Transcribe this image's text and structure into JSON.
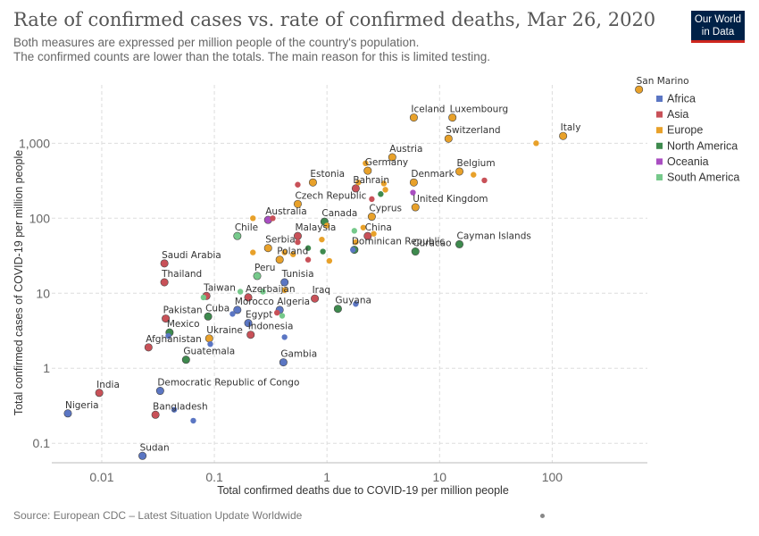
{
  "header": {
    "title": "Rate of confirmed cases vs. rate of confirmed deaths, Mar 26, 2020",
    "subtitle_line1": "Both measures are expressed per million people of the country's population.",
    "subtitle_line2": "The confirmed counts are lower than the totals. The main reason for this is limited testing.",
    "logo_line1": "Our World",
    "logo_line2": "in Data"
  },
  "footer": {
    "source": "Source: European CDC – Latest Situation Update Worldwide"
  },
  "colors": {
    "Africa": "#5b76c3",
    "Asia": "#c85158",
    "Europe": "#e8a12a",
    "North America": "#3e8a4e",
    "Oceania": "#a94ec1",
    "South America": "#76c98b"
  },
  "chart_data": {
    "type": "scatter",
    "xlabel": "Total confirmed deaths due to COVID-19 per million people",
    "ylabel": "Total confirmed cases of COVID-19 per million people",
    "xscale": "log",
    "yscale": "log",
    "xlim": [
      0.0036,
      700
    ],
    "ylim": [
      0.055,
      6000
    ],
    "x_ticks": [
      {
        "value": 0.01,
        "label": "0.01"
      },
      {
        "value": 0.1,
        "label": "0.1"
      },
      {
        "value": 1,
        "label": "1"
      },
      {
        "value": 10,
        "label": "10"
      },
      {
        "value": 100,
        "label": "100"
      }
    ],
    "y_ticks": [
      {
        "value": 0.1,
        "label": "0.1"
      },
      {
        "value": 1,
        "label": "1"
      },
      {
        "value": 10,
        "label": "10"
      },
      {
        "value": 100,
        "label": "100"
      },
      {
        "value": 1000,
        "label": "1,000"
      }
    ],
    "grid": true,
    "legend_position": "right",
    "legend": [
      "Africa",
      "Asia",
      "Europe",
      "North America",
      "Oceania",
      "South America"
    ],
    "points": [
      {
        "label": "San Marino",
        "x": 590,
        "y": 5200,
        "region": "Europe"
      },
      {
        "label": "Italy",
        "x": 125,
        "y": 1250,
        "region": "Europe"
      },
      {
        "label": "",
        "x": 72,
        "y": 1000,
        "region": "Europe"
      },
      {
        "label": "Luxembourg",
        "x": 13,
        "y": 2200,
        "region": "Europe"
      },
      {
        "label": "Iceland",
        "x": 5.9,
        "y": 2200,
        "region": "Europe"
      },
      {
        "label": "Switzerland",
        "x": 12,
        "y": 1150,
        "region": "Europe"
      },
      {
        "label": "Austria",
        "x": 3.8,
        "y": 650,
        "region": "Europe"
      },
      {
        "label": "Germany",
        "x": 2.3,
        "y": 430,
        "region": "Europe"
      },
      {
        "label": "",
        "x": 2.2,
        "y": 540,
        "region": "Europe"
      },
      {
        "label": "Belgium",
        "x": 15,
        "y": 420,
        "region": "Europe"
      },
      {
        "label": "",
        "x": 20,
        "y": 380,
        "region": "Europe"
      },
      {
        "label": "",
        "x": 25,
        "y": 320,
        "region": "Asia"
      },
      {
        "label": "Denmark",
        "x": 5.9,
        "y": 300,
        "region": "Europe"
      },
      {
        "label": "",
        "x": 3.2,
        "y": 290,
        "region": "Europe"
      },
      {
        "label": "",
        "x": 3.3,
        "y": 240,
        "region": "Europe"
      },
      {
        "label": "Estonia",
        "x": 0.75,
        "y": 300,
        "region": "Europe"
      },
      {
        "label": "",
        "x": 0.55,
        "y": 280,
        "region": "Asia"
      },
      {
        "label": "Bahrain",
        "x": 1.8,
        "y": 250,
        "region": "Asia"
      },
      {
        "label": "",
        "x": 1.9,
        "y": 300,
        "region": "Europe"
      },
      {
        "label": "",
        "x": 3.0,
        "y": 210,
        "region": "North America"
      },
      {
        "label": "Czech Republic",
        "x": 0.55,
        "y": 155,
        "region": "Europe"
      },
      {
        "label": "",
        "x": 2.5,
        "y": 180,
        "region": "Asia"
      },
      {
        "label": "United Kingdom",
        "x": 6.1,
        "y": 140,
        "region": "Europe"
      },
      {
        "label": "",
        "x": 5.8,
        "y": 220,
        "region": "Oceania"
      },
      {
        "label": "Cyprus",
        "x": 2.5,
        "y": 105,
        "region": "Europe"
      },
      {
        "label": "Australia",
        "x": 0.3,
        "y": 95,
        "region": "Oceania"
      },
      {
        "label": "",
        "x": 0.33,
        "y": 100,
        "region": "Asia"
      },
      {
        "label": "",
        "x": 0.22,
        "y": 100,
        "region": "Europe"
      },
      {
        "label": "Canada",
        "x": 0.95,
        "y": 90,
        "region": "North America"
      },
      {
        "label": "",
        "x": 1.0,
        "y": 80,
        "region": "Europe"
      },
      {
        "label": "Chile",
        "x": 0.16,
        "y": 58,
        "region": "South America"
      },
      {
        "label": "Malaysia",
        "x": 0.55,
        "y": 58,
        "region": "Asia"
      },
      {
        "label": "China",
        "x": 2.3,
        "y": 58,
        "region": "Asia"
      },
      {
        "label": "",
        "x": 2.1,
        "y": 75,
        "region": "Europe"
      },
      {
        "label": "",
        "x": 1.75,
        "y": 68,
        "region": "South America"
      },
      {
        "label": "",
        "x": 2.6,
        "y": 62,
        "region": "Europe"
      },
      {
        "label": "Serbia",
        "x": 0.3,
        "y": 40,
        "region": "Europe"
      },
      {
        "label": "",
        "x": 0.55,
        "y": 48,
        "region": "Asia"
      },
      {
        "label": "",
        "x": 0.9,
        "y": 52,
        "region": "Europe"
      },
      {
        "label": "Dominican Republic",
        "x": 1.75,
        "y": 38,
        "region": "North America"
      },
      {
        "label": "",
        "x": 1.7,
        "y": 38,
        "region": "Africa"
      },
      {
        "label": "",
        "x": 1.8,
        "y": 48,
        "region": "Europe"
      },
      {
        "label": "Poland",
        "x": 0.38,
        "y": 28,
        "region": "Europe"
      },
      {
        "label": "",
        "x": 0.22,
        "y": 35,
        "region": "Europe"
      },
      {
        "label": "",
        "x": 0.42,
        "y": 35,
        "region": "Europe"
      },
      {
        "label": "",
        "x": 0.5,
        "y": 33,
        "region": "Europe"
      },
      {
        "label": "",
        "x": 0.68,
        "y": 40,
        "region": "North America"
      },
      {
        "label": "",
        "x": 0.68,
        "y": 28,
        "region": "Asia"
      },
      {
        "label": "",
        "x": 0.92,
        "y": 36,
        "region": "North America"
      },
      {
        "label": "",
        "x": 1.05,
        "y": 27,
        "region": "Europe"
      },
      {
        "label": "Curacao",
        "x": 6.1,
        "y": 36,
        "region": "North America"
      },
      {
        "label": "Cayman Islands",
        "x": 15,
        "y": 45,
        "region": "North America"
      },
      {
        "label": "Saudi Arabia",
        "x": 0.036,
        "y": 25,
        "region": "Asia"
      },
      {
        "label": "Thailand",
        "x": 0.036,
        "y": 14,
        "region": "Asia"
      },
      {
        "label": "Peru",
        "x": 0.24,
        "y": 17,
        "region": "South America"
      },
      {
        "label": "Tunisia",
        "x": 0.42,
        "y": 14,
        "region": "Africa"
      },
      {
        "label": "Taiwan",
        "x": 0.085,
        "y": 9.2,
        "region": "Asia"
      },
      {
        "label": "",
        "x": 0.08,
        "y": 8.8,
        "region": "South America"
      },
      {
        "label": "",
        "x": 0.17,
        "y": 10.5,
        "region": "South America"
      },
      {
        "label": "Azerbaijan",
        "x": 0.2,
        "y": 8.8,
        "region": "Asia"
      },
      {
        "label": "",
        "x": 0.27,
        "y": 10.5,
        "region": "South America"
      },
      {
        "label": "",
        "x": 0.42,
        "y": 11,
        "region": "Europe"
      },
      {
        "label": "Iraq",
        "x": 0.78,
        "y": 8.5,
        "region": "Asia"
      },
      {
        "label": "Guyana",
        "x": 1.25,
        "y": 6.2,
        "region": "North America"
      },
      {
        "label": "",
        "x": 1.8,
        "y": 7.2,
        "region": "Africa"
      },
      {
        "label": "Pakistan",
        "x": 0.037,
        "y": 4.6,
        "region": "Asia"
      },
      {
        "label": "Cuba",
        "x": 0.088,
        "y": 4.9,
        "region": "North America"
      },
      {
        "label": "Morocco",
        "x": 0.16,
        "y": 6.0,
        "region": "Africa"
      },
      {
        "label": "",
        "x": 0.145,
        "y": 5.3,
        "region": "Africa"
      },
      {
        "label": "Algeria",
        "x": 0.38,
        "y": 6.0,
        "region": "Africa"
      },
      {
        "label": "",
        "x": 0.36,
        "y": 5.5,
        "region": "Asia"
      },
      {
        "label": "",
        "x": 0.4,
        "y": 5.0,
        "region": "South America"
      },
      {
        "label": "Egypt",
        "x": 0.2,
        "y": 4.0,
        "region": "Africa"
      },
      {
        "label": "Mexico",
        "x": 0.04,
        "y": 3.0,
        "region": "North America"
      },
      {
        "label": "",
        "x": 0.039,
        "y": 2.7,
        "region": "Africa"
      },
      {
        "label": "Indonesia",
        "x": 0.21,
        "y": 2.8,
        "region": "Asia"
      },
      {
        "label": "",
        "x": 0.42,
        "y": 2.6,
        "region": "Africa"
      },
      {
        "label": "Ukraine",
        "x": 0.09,
        "y": 2.5,
        "region": "Europe"
      },
      {
        "label": "",
        "x": 0.092,
        "y": 2.1,
        "region": "Africa"
      },
      {
        "label": "Afghanistan",
        "x": 0.026,
        "y": 1.9,
        "region": "Asia"
      },
      {
        "label": "Guatemala",
        "x": 0.056,
        "y": 1.3,
        "region": "North America"
      },
      {
        "label": "Gambia",
        "x": 0.41,
        "y": 1.2,
        "region": "Africa"
      },
      {
        "label": "India",
        "x": 0.0095,
        "y": 0.47,
        "region": "Asia"
      },
      {
        "label": "Democratic Republic of Congo",
        "x": 0.033,
        "y": 0.5,
        "region": "Africa"
      },
      {
        "label": "Nigeria",
        "x": 0.005,
        "y": 0.25,
        "region": "Africa"
      },
      {
        "label": "Bangladesh",
        "x": 0.03,
        "y": 0.24,
        "region": "Asia"
      },
      {
        "label": "",
        "x": 0.044,
        "y": 0.28,
        "region": "Africa"
      },
      {
        "label": "",
        "x": 0.065,
        "y": 0.2,
        "region": "Africa"
      },
      {
        "label": "Sudan",
        "x": 0.023,
        "y": 0.068,
        "region": "Africa"
      }
    ]
  }
}
